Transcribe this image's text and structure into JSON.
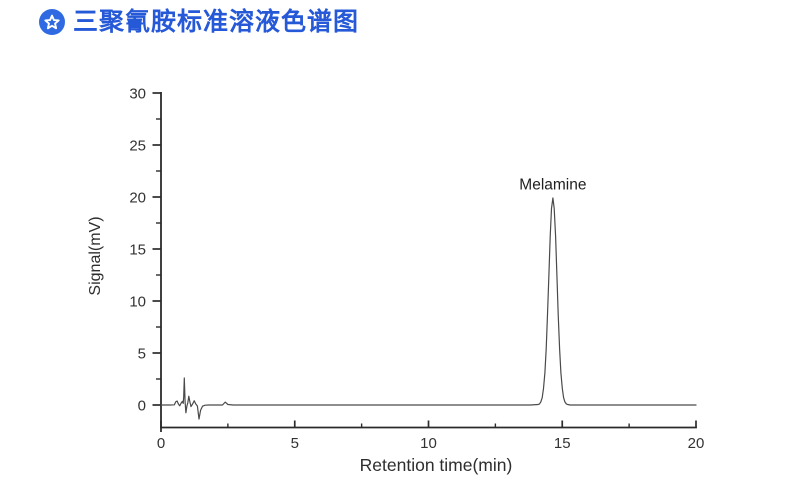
{
  "header": {
    "title": "三聚氰胺标准溶液色谱图",
    "title_color": "#2659d8",
    "icon_color": "#2f6ae2",
    "icon_star_color": "#ffffff"
  },
  "chart_data": {
    "type": "line",
    "title": "",
    "xlabel": "Retention time(min)",
    "ylabel": "Signal(mV)",
    "xlim": [
      0,
      20
    ],
    "ylim": [
      -2.2,
      30
    ],
    "x_ticks": [
      0,
      5,
      10,
      15,
      20
    ],
    "x_minor_ticks": [
      2.5,
      7.5,
      12.5,
      17.5
    ],
    "y_ticks": [
      0,
      5,
      10,
      15,
      20,
      25,
      30
    ],
    "y_minor_ticks": [
      2.5,
      7.5,
      12.5,
      17.5,
      22.5,
      27.5
    ],
    "grid": false,
    "legend": false,
    "line_color": "#4a4a4a",
    "axis_color": "#2b2b2b",
    "annotations": [
      {
        "text": "Melamine",
        "x": 14.65,
        "y": 20.7
      }
    ],
    "peaks": [
      {
        "label": "Melamine",
        "retention_time_min": 14.65,
        "height_mV": 19.9
      }
    ],
    "series": [
      {
        "name": "melamine standard chromatogram",
        "points": [
          [
            0,
            0
          ],
          [
            0.35,
            0
          ],
          [
            0.5,
            0.02
          ],
          [
            0.55,
            0.3
          ],
          [
            0.6,
            0.38
          ],
          [
            0.65,
            0.1
          ],
          [
            0.7,
            -0.08
          ],
          [
            0.75,
            0.18
          ],
          [
            0.8,
            0.35
          ],
          [
            0.83,
            0.15
          ],
          [
            0.85,
            0.8
          ],
          [
            0.87,
            2.6
          ],
          [
            0.9,
            0.3
          ],
          [
            0.93,
            -0.75
          ],
          [
            0.97,
            -0.1
          ],
          [
            1.0,
            0.2
          ],
          [
            1.04,
            0.85
          ],
          [
            1.08,
            0.3
          ],
          [
            1.12,
            -0.15
          ],
          [
            1.18,
            0.1
          ],
          [
            1.24,
            0.4
          ],
          [
            1.3,
            0.1
          ],
          [
            1.36,
            -0.1
          ],
          [
            1.42,
            -1.35
          ],
          [
            1.48,
            -0.5
          ],
          [
            1.55,
            -0.12
          ],
          [
            1.65,
            -0.02
          ],
          [
            1.8,
            0
          ],
          [
            2.3,
            0
          ],
          [
            2.4,
            0.28
          ],
          [
            2.5,
            0.05
          ],
          [
            2.7,
            0
          ],
          [
            3.5,
            0
          ],
          [
            5,
            0
          ],
          [
            7,
            0
          ],
          [
            9,
            0
          ],
          [
            11,
            0
          ],
          [
            13,
            0
          ],
          [
            13.8,
            0
          ],
          [
            14.1,
            0.05
          ],
          [
            14.15,
            0.11
          ],
          [
            14.2,
            0.3
          ],
          [
            14.25,
            0.7
          ],
          [
            14.3,
            1.6
          ],
          [
            14.35,
            3.1
          ],
          [
            14.4,
            5.4
          ],
          [
            14.45,
            8.7
          ],
          [
            14.5,
            12.5
          ],
          [
            14.55,
            16.2
          ],
          [
            14.6,
            18.9
          ],
          [
            14.65,
            19.9
          ],
          [
            14.7,
            18.9
          ],
          [
            14.75,
            16.2
          ],
          [
            14.8,
            12.5
          ],
          [
            14.85,
            8.7
          ],
          [
            14.9,
            5.4
          ],
          [
            14.95,
            3.1
          ],
          [
            15.0,
            1.6
          ],
          [
            15.05,
            0.7
          ],
          [
            15.1,
            0.3
          ],
          [
            15.15,
            0.11
          ],
          [
            15.2,
            0.05
          ],
          [
            15.3,
            0
          ],
          [
            16,
            0
          ],
          [
            17,
            0
          ],
          [
            18,
            0
          ],
          [
            19,
            0
          ],
          [
            20,
            0
          ]
        ]
      }
    ]
  }
}
